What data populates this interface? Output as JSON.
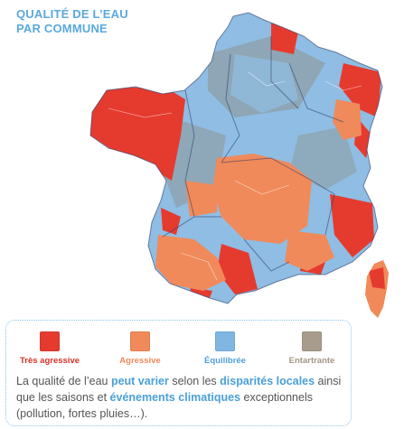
{
  "title": {
    "line1": "QUALITÉ DE L’EAU",
    "line2": "PAR COMMUNE"
  },
  "colors": {
    "title": "#5aa9dc",
    "tres_agressive": "#e53b2f",
    "agressive": "#f08a5a",
    "equilibree": "#8fbde3",
    "entartrante": "#8e9490",
    "highlight": "#4a9fd8",
    "border": "#2b3b6a"
  },
  "legend": [
    {
      "label": "Très agressive",
      "color": "#e53b2f",
      "text_color": "#d6302a"
    },
    {
      "label": "Agressive",
      "color": "#f08a5a",
      "text_color": "#ef8a5a"
    },
    {
      "label": "Équilibrée",
      "color": "#7fb6e2",
      "text_color": "#4f9fd8"
    },
    {
      "label": "Entartrante",
      "color": "#a89c8c",
      "text_color": "#a39583"
    }
  ],
  "caption": {
    "part1": "La qualité de l’eau ",
    "hl1": "peut varier",
    "part2": " selon les ",
    "hl2": "disparités locales",
    "part3": " ainsi que les saisons et ",
    "hl3": "événements climatiques",
    "part4": " exceptionnels (pollution, fortes pluies…)."
  }
}
